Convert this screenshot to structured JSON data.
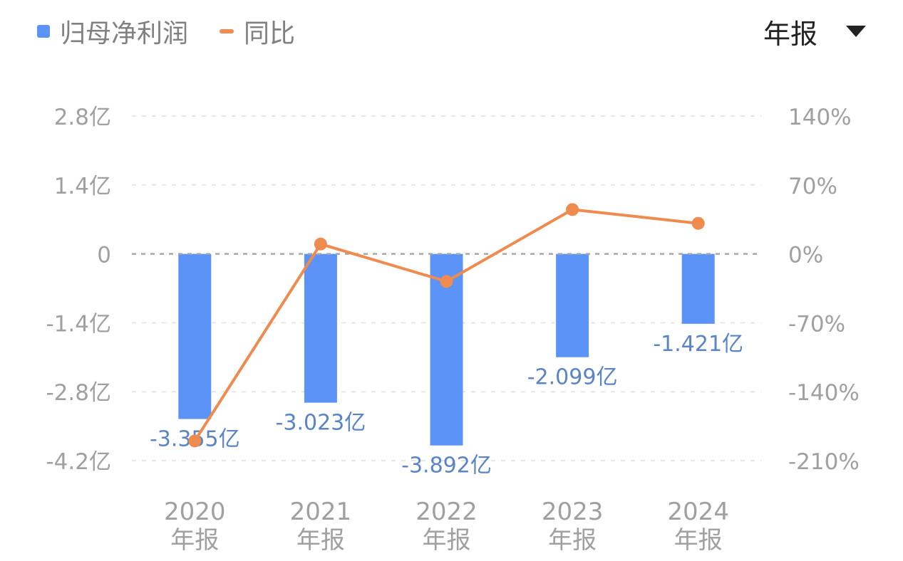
{
  "legend": {
    "bar_label": "归母净利润",
    "line_label": "同比"
  },
  "period_selector": {
    "label": "年报"
  },
  "colors": {
    "bar": "#5b93f7",
    "line": "#ef8b4f",
    "bar_label": "#5a84c8",
    "axis_text": "#a0a0a0",
    "grid": "#e6e6e6",
    "zero_line": "#a8a8a8"
  },
  "chart_data": {
    "type": "bar",
    "categories": [
      [
        "2020",
        "年报"
      ],
      [
        "2021",
        "年报"
      ],
      [
        "2022",
        "年报"
      ],
      [
        "2023",
        "年报"
      ],
      [
        "2024",
        "年报"
      ]
    ],
    "series": [
      {
        "name": "归母净利润",
        "type": "bar",
        "axis": "left",
        "values": [
          -3.355,
          -3.023,
          -3.892,
          -2.099,
          -1.421
        ],
        "labels": [
          "-3.355亿",
          "-3.023亿",
          "-3.892亿",
          "-2.099亿",
          "-1.421亿"
        ]
      },
      {
        "name": "同比",
        "type": "line",
        "axis": "right",
        "values": [
          -190,
          10,
          -28,
          45,
          31
        ]
      }
    ],
    "left_axis": {
      "ticks": [
        2.8,
        1.4,
        0,
        -1.4,
        -2.8,
        -4.2
      ],
      "tick_labels": [
        "2.8亿",
        "1.4亿",
        "0",
        "-1.4亿",
        "-2.8亿",
        "-4.2亿"
      ],
      "range": [
        -4.2,
        2.8
      ]
    },
    "right_axis": {
      "ticks": [
        140,
        70,
        0,
        -70,
        -140,
        -210
      ],
      "tick_labels": [
        "140%",
        "70%",
        "0%",
        "-70%",
        "-140%",
        "-210%"
      ],
      "range": [
        -210,
        140
      ]
    },
    "grid": true,
    "legend_position": "top-left"
  }
}
